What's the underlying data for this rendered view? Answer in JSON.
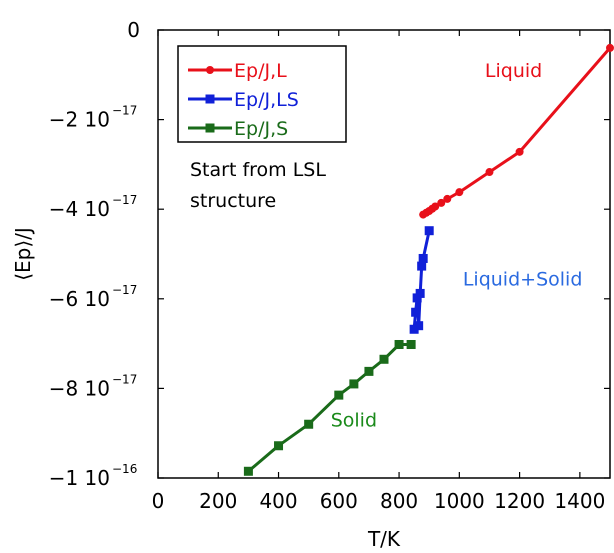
{
  "chart_data": {
    "type": "line",
    "xlabel": "T/K",
    "ylabel": "⟨Ep⟩/J",
    "xlim": [
      0,
      1500
    ],
    "ylim": [
      -1e-16,
      0
    ],
    "grid": false,
    "legend_position": "top-left",
    "x_ticks": [
      {
        "value": 0,
        "label": "0"
      },
      {
        "value": 200,
        "label": "200"
      },
      {
        "value": 400,
        "label": "400"
      },
      {
        "value": 600,
        "label": "600"
      },
      {
        "value": 800,
        "label": "800"
      },
      {
        "value": 1000,
        "label": "1000"
      },
      {
        "value": 1200,
        "label": "1200"
      },
      {
        "value": 1400,
        "label": "1400"
      }
    ],
    "y_ticks": [
      {
        "value": 0,
        "mantissa": "0",
        "exp": ""
      },
      {
        "value": -2e-17,
        "mantissa": "−2 10",
        "exp": "−17"
      },
      {
        "value": -4e-17,
        "mantissa": "−4 10",
        "exp": "−17"
      },
      {
        "value": -6e-17,
        "mantissa": "−6 10",
        "exp": "−17"
      },
      {
        "value": -8e-17,
        "mantissa": "−8 10",
        "exp": "−17"
      },
      {
        "value": -1e-16,
        "mantissa": "−1 10",
        "exp": "−16"
      }
    ],
    "series": [
      {
        "name": "Ep/J,L",
        "color": "#e8101a",
        "marker": "circle",
        "points": [
          [
            880,
            -4.12e-17
          ],
          [
            890,
            -4.08e-17
          ],
          [
            900,
            -4.04e-17
          ],
          [
            910,
            -3.99e-17
          ],
          [
            920,
            -3.94e-17
          ],
          [
            940,
            -3.86e-17
          ],
          [
            960,
            -3.77e-17
          ],
          [
            1000,
            -3.62e-17
          ],
          [
            1100,
            -3.17e-17
          ],
          [
            1200,
            -2.72e-17
          ],
          [
            1500,
            -4e-18
          ]
        ]
      },
      {
        "name": "Ep/J,LS",
        "color": "#1020d8",
        "marker": "square",
        "points": [
          [
            850,
            -6.68e-17
          ],
          [
            855,
            -6.3e-17
          ],
          [
            860,
            -5.98e-17
          ],
          [
            865,
            -6.6e-17
          ],
          [
            870,
            -5.88e-17
          ],
          [
            875,
            -5.27e-17
          ],
          [
            880,
            -5.1e-17
          ],
          [
            900,
            -4.48e-17
          ]
        ]
      },
      {
        "name": "Ep/J,S",
        "color": "#1a6b1a",
        "marker": "square",
        "points": [
          [
            300,
            -9.85e-17
          ],
          [
            400,
            -9.28e-17
          ],
          [
            500,
            -8.8e-17
          ],
          [
            600,
            -8.15e-17
          ],
          [
            650,
            -7.9e-17
          ],
          [
            700,
            -7.62e-17
          ],
          [
            750,
            -7.35e-17
          ],
          [
            800,
            -7.02e-17
          ],
          [
            840,
            -7.02e-17
          ]
        ]
      }
    ],
    "legend_note": [
      "Start from LSL",
      "structure"
    ],
    "annotations": [
      {
        "text": "Liquid",
        "color": "#e8101a",
        "x": 1180,
        "y": -1.05e-17
      },
      {
        "text": "Liquid+Solid",
        "color": "#2a6ae0",
        "x": 1210,
        "y": -5.7e-17
      },
      {
        "text": "Solid",
        "color": "#1a8a1a",
        "x": 650,
        "y": -8.85e-17
      }
    ]
  }
}
